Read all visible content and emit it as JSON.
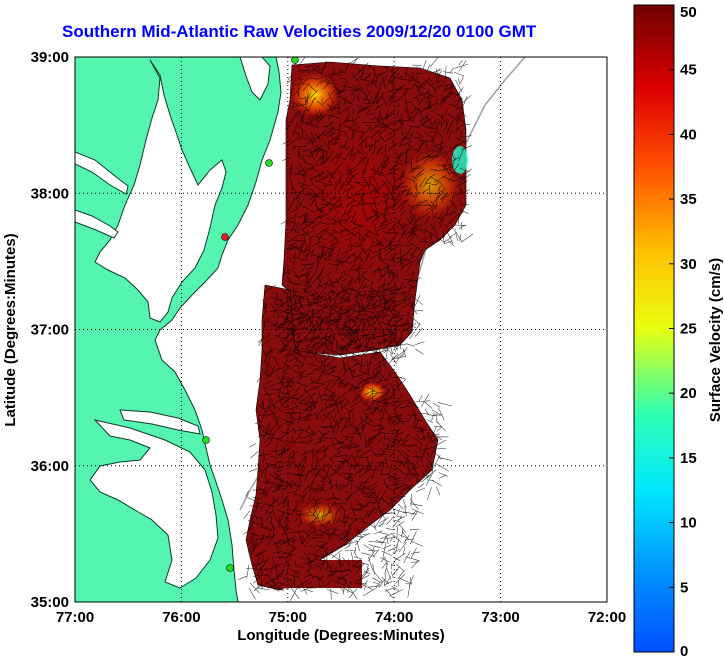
{
  "title": "Southern Mid-Atlantic Raw Velocities 2009/12/20 0100 GMT",
  "map": {
    "xlabel": "Longitude (Degrees:Minutes)",
    "ylabel": "Latitude (Degrees:Minutes)",
    "lon_range": [
      -77,
      -72
    ],
    "lat_range": [
      35,
      39
    ],
    "x_ticks": [
      "77:00",
      "76:00",
      "75:00",
      "74:00",
      "73:00",
      "72:00"
    ],
    "y_ticks": [
      "39:00",
      "38:00",
      "37:00",
      "36:00",
      "35:00"
    ],
    "grid": "dotted",
    "land_color": "#55f5b0",
    "water_color": "#ffffff",
    "coverage_color": "#8b0c0c",
    "site_colors": {
      "site": "#22dd22",
      "site_inactive": "#dd2222"
    }
  },
  "colorbar": {
    "label": "Surface Velocity (cm/s)",
    "range": [
      0,
      50
    ],
    "ticks": [
      "0",
      "5",
      "10",
      "15",
      "20",
      "25",
      "30",
      "35",
      "40",
      "45",
      "50"
    ]
  }
}
